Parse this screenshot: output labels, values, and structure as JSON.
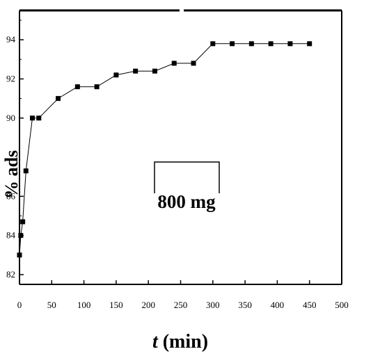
{
  "chart_data": {
    "type": "line",
    "title": "",
    "xlabel": {
      "italic": "t",
      "rest": " (min)"
    },
    "ylabel": "% ads",
    "xlim": [
      0,
      500
    ],
    "ylim": [
      81.5,
      95.5
    ],
    "x_ticks": [
      0,
      50,
      100,
      150,
      200,
      250,
      300,
      350,
      400,
      450,
      500
    ],
    "y_ticks": [
      82,
      84,
      86,
      90,
      92,
      94
    ],
    "grid": false,
    "legend": {
      "label": "800 mg",
      "placement": "center"
    },
    "series": [
      {
        "marker": "square",
        "color": "#000000",
        "x": [
          0,
          2,
          5,
          10,
          20,
          30,
          60,
          90,
          120,
          150,
          180,
          210,
          240,
          270,
          300,
          330,
          360,
          390,
          420,
          450
        ],
        "y": [
          83.0,
          84.0,
          84.7,
          87.3,
          90.0,
          90.0,
          91.0,
          91.6,
          91.6,
          92.2,
          92.4,
          92.4,
          92.8,
          92.8,
          93.8,
          93.8,
          93.8,
          93.8,
          93.8,
          93.8
        ]
      }
    ]
  }
}
